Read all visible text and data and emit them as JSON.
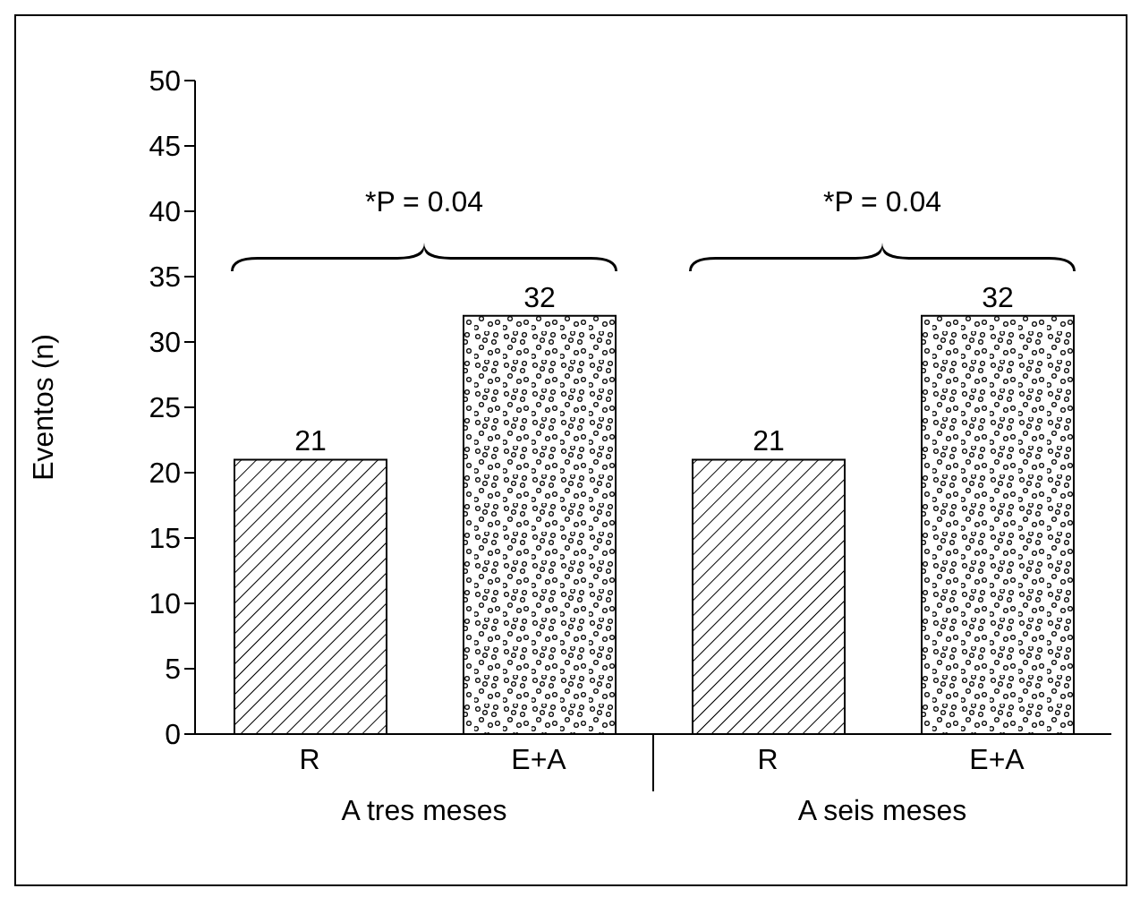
{
  "chart_data": {
    "type": "bar",
    "ylabel": "Eventos (n)",
    "categories": [
      "R",
      "E+A",
      "R",
      "E+A"
    ],
    "series": [
      {
        "color": "#000000",
        "values": [
          21,
          32,
          21,
          32
        ]
      }
    ],
    "ylim": [
      0,
      50
    ],
    "yticks": [
      0,
      5,
      10,
      15,
      20,
      25,
      30,
      35,
      40,
      45,
      50
    ],
    "data_labels": true,
    "grid": false,
    "annotations": [
      "A tres meses",
      "A seis meses",
      "*P = 0.04",
      "*P = 0.04"
    ]
  }
}
